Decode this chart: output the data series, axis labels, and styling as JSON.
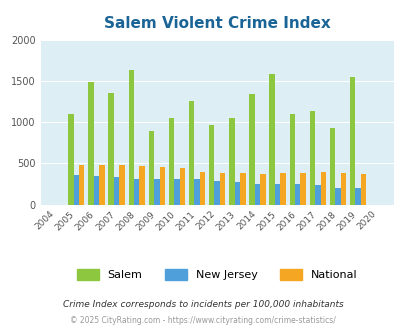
{
  "title": "Salem Violent Crime Index",
  "years": [
    2004,
    2005,
    2006,
    2007,
    2008,
    2009,
    2010,
    2011,
    2012,
    2013,
    2014,
    2015,
    2016,
    2017,
    2018,
    2019,
    2020
  ],
  "salem": [
    0,
    1100,
    1490,
    1350,
    1630,
    890,
    1050,
    1250,
    960,
    1050,
    1340,
    1580,
    1100,
    1140,
    930,
    1550,
    0
  ],
  "new_jersey": [
    0,
    355,
    350,
    330,
    315,
    305,
    305,
    305,
    285,
    280,
    255,
    255,
    245,
    240,
    200,
    200,
    0
  ],
  "national": [
    0,
    475,
    480,
    480,
    470,
    450,
    440,
    390,
    380,
    380,
    375,
    380,
    385,
    395,
    385,
    375,
    0
  ],
  "salem_color": "#8dc63f",
  "nj_color": "#4f9fda",
  "nat_color": "#f5a623",
  "bg_color": "#ddeef5",
  "ylim": [
    0,
    2000
  ],
  "yticks": [
    0,
    500,
    1000,
    1500,
    2000
  ],
  "xlabel": "",
  "ylabel": "",
  "legend_labels": [
    "Salem",
    "New Jersey",
    "National"
  ],
  "footnote1": "Crime Index corresponds to incidents per 100,000 inhabitants",
  "footnote2": "© 2025 CityRating.com - https://www.cityrating.com/crime-statistics/",
  "title_color": "#1a6496",
  "footnote1_color": "#333333",
  "footnote2_color": "#999999"
}
